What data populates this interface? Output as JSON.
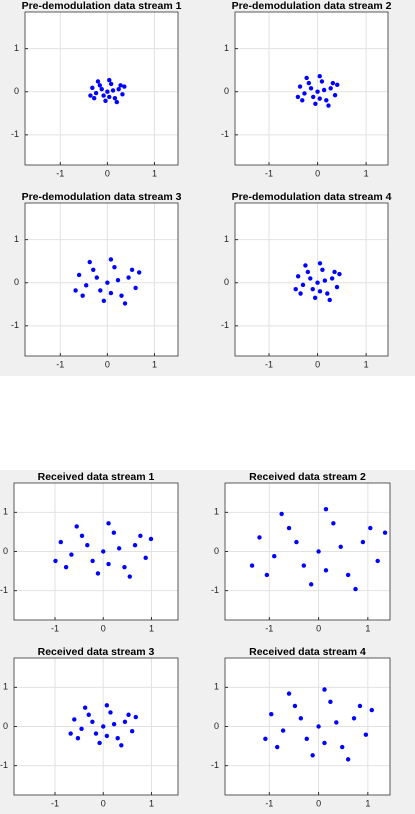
{
  "chart_data": [
    {
      "type": "scatter",
      "title": "Pre-demodulation data stream 1",
      "color": "#0000ff",
      "grid": true,
      "xlim": [
        -1.75,
        1.5
      ],
      "ylim": [
        -1.7,
        1.85
      ],
      "xticks": [
        -1,
        0,
        1
      ],
      "yticks": [
        -1,
        0,
        1
      ],
      "x": [
        0,
        0.12,
        -0.12,
        0.04,
        -0.08,
        0.24,
        -0.24,
        0.16,
        -0.16,
        0.08,
        -0.04,
        0.32,
        -0.32,
        0.28,
        -0.28,
        0.2,
        -0.2,
        0.36,
        -0.36,
        0.04
      ],
      "values": [
        0,
        0.03,
        0.06,
        -0.12,
        -0.09,
        0.06,
        -0.03,
        -0.15,
        0.15,
        0.18,
        -0.21,
        -0.06,
        0.09,
        0.15,
        -0.15,
        -0.24,
        0.24,
        0.12,
        -0.09,
        0.27
      ]
    },
    {
      "type": "scatter",
      "title": "Pre-demodulation data stream 2",
      "color": "#0000ff",
      "grid": true,
      "xlim": [
        -1.7,
        1.45
      ],
      "ylim": [
        -1.7,
        1.85
      ],
      "xticks": [
        -1,
        0,
        1
      ],
      "yticks": [
        -1,
        0,
        1
      ],
      "x": [
        0,
        0.135,
        -0.135,
        0.045,
        -0.09,
        0.27,
        -0.27,
        0.18,
        -0.18,
        0.09,
        -0.045,
        0.36,
        -0.36,
        0.315,
        -0.315,
        0.225,
        -0.225,
        0.405,
        -0.405,
        0.045
      ],
      "values": [
        0,
        0.04,
        0.08,
        -0.16,
        -0.12,
        0.08,
        -0.04,
        -0.2,
        0.2,
        0.24,
        -0.28,
        -0.08,
        0.12,
        0.2,
        -0.2,
        -0.32,
        0.32,
        0.16,
        -0.12,
        0.36
      ]
    },
    {
      "type": "scatter",
      "title": "Pre-demodulation data stream 3",
      "color": "#0000ff",
      "grid": true,
      "xlim": [
        -1.75,
        1.5
      ],
      "ylim": [
        -1.7,
        1.85
      ],
      "xticks": [
        -1,
        0,
        1
      ],
      "yticks": [
        -1,
        0,
        1
      ],
      "x": [
        0,
        0.225,
        -0.225,
        0.075,
        -0.15,
        0.45,
        -0.45,
        0.3,
        -0.3,
        0.15,
        -0.075,
        0.6,
        -0.6,
        0.525,
        -0.525,
        0.375,
        -0.375,
        0.675,
        -0.675,
        0.075
      ],
      "values": [
        0,
        0.06,
        0.12,
        -0.24,
        -0.18,
        0.12,
        -0.06,
        -0.3,
        0.3,
        0.36,
        -0.42,
        -0.12,
        0.18,
        0.3,
        -0.3,
        -0.48,
        0.48,
        0.24,
        -0.18,
        0.54
      ]
    },
    {
      "type": "scatter",
      "title": "Pre-demodulation data stream 4",
      "color": "#0000ff",
      "grid": true,
      "xlim": [
        -1.7,
        1.45
      ],
      "ylim": [
        -1.7,
        1.85
      ],
      "xticks": [
        -1,
        0,
        1
      ],
      "yticks": [
        -1,
        0,
        1
      ],
      "x": [
        0,
        0.15,
        -0.15,
        0.05,
        -0.1,
        0.3,
        -0.3,
        0.2,
        -0.2,
        0.1,
        -0.05,
        0.4,
        -0.4,
        0.35,
        -0.35,
        0.25,
        -0.25,
        0.45,
        -0.45,
        0.05
      ],
      "values": [
        0,
        0.05,
        0.1,
        -0.2,
        -0.15,
        0.1,
        -0.05,
        -0.25,
        0.25,
        0.3,
        -0.35,
        -0.1,
        0.15,
        0.25,
        -0.25,
        -0.4,
        0.4,
        0.2,
        -0.15,
        0.45
      ]
    },
    {
      "type": "scatter",
      "title": "Received data stream 1",
      "color": "#0000ff",
      "grid": true,
      "xlim": [
        -1.85,
        1.55
      ],
      "ylim": [
        -1.75,
        1.75
      ],
      "xticks": [
        -1,
        0,
        1
      ],
      "yticks": [
        -1,
        0,
        1
      ],
      "x": [
        0,
        0.33,
        -0.33,
        0.11,
        -0.22,
        0.66,
        -0.66,
        0.44,
        -0.44,
        0.22,
        -0.11,
        0.88,
        -0.88,
        0.77,
        -0.77,
        0.55,
        -0.55,
        0.99,
        -0.99,
        0.11
      ],
      "values": [
        0,
        0.08,
        0.16,
        -0.32,
        -0.24,
        0.16,
        -0.08,
        -0.4,
        0.4,
        0.48,
        -0.56,
        -0.16,
        0.24,
        0.4,
        -0.4,
        -0.64,
        0.64,
        0.32,
        -0.24,
        0.72
      ]
    },
    {
      "type": "scatter",
      "title": "Received data stream 2",
      "color": "#0000ff",
      "grid": true,
      "xlim": [
        -1.9,
        1.45
      ],
      "ylim": [
        -1.75,
        1.75
      ],
      "xticks": [
        -1,
        0,
        1
      ],
      "yticks": [
        -1,
        0,
        1
      ],
      "x": [
        0,
        0.45,
        -0.45,
        0.15,
        -0.3,
        0.9,
        -0.9,
        0.6,
        -0.6,
        0.3,
        -0.15,
        1.2,
        -1.2,
        1.05,
        -1.05,
        0.75,
        -0.75,
        1.35,
        -1.35,
        0.15
      ],
      "values": [
        0,
        0.12,
        0.24,
        -0.48,
        -0.36,
        0.24,
        -0.12,
        -0.6,
        0.6,
        0.72,
        -0.84,
        -0.24,
        0.36,
        0.6,
        -0.6,
        -0.96,
        0.96,
        0.48,
        -0.36,
        1.08
      ]
    },
    {
      "type": "scatter",
      "title": "Received data stream 3",
      "color": "#0000ff",
      "grid": true,
      "xlim": [
        -1.85,
        1.55
      ],
      "ylim": [
        -1.75,
        1.75
      ],
      "xticks": [
        -1,
        0,
        1
      ],
      "yticks": [
        -1,
        0,
        1
      ],
      "x": [
        0,
        0.225,
        -0.225,
        0.075,
        -0.15,
        0.45,
        -0.45,
        0.3,
        -0.3,
        0.15,
        -0.075,
        0.6,
        -0.6,
        0.525,
        -0.525,
        0.375,
        -0.375,
        0.675,
        -0.675,
        0.075
      ],
      "values": [
        0,
        0.06,
        0.12,
        -0.24,
        -0.18,
        0.12,
        -0.06,
        -0.3,
        0.3,
        0.36,
        -0.42,
        -0.12,
        0.18,
        0.3,
        -0.3,
        -0.48,
        0.48,
        0.24,
        -0.18,
        0.54
      ]
    },
    {
      "type": "scatter",
      "title": "Received data stream 4",
      "color": "#0000ff",
      "grid": true,
      "xlim": [
        -1.9,
        1.45
      ],
      "ylim": [
        -1.75,
        1.75
      ],
      "xticks": [
        -1,
        0,
        1
      ],
      "yticks": [
        -1,
        0,
        1
      ],
      "x": [
        0,
        0.36,
        -0.36,
        0.12,
        -0.24,
        0.72,
        -0.72,
        0.48,
        -0.48,
        0.24,
        -0.12,
        0.96,
        -0.96,
        0.84,
        -0.84,
        0.6,
        -0.6,
        1.08,
        -1.08,
        0.12
      ],
      "values": [
        0,
        0.105,
        0.21,
        -0.42,
        -0.315,
        0.21,
        -0.105,
        -0.525,
        0.525,
        0.63,
        -0.735,
        -0.21,
        0.315,
        0.525,
        -0.525,
        -0.84,
        0.84,
        0.42,
        -0.315,
        0.945
      ]
    }
  ]
}
